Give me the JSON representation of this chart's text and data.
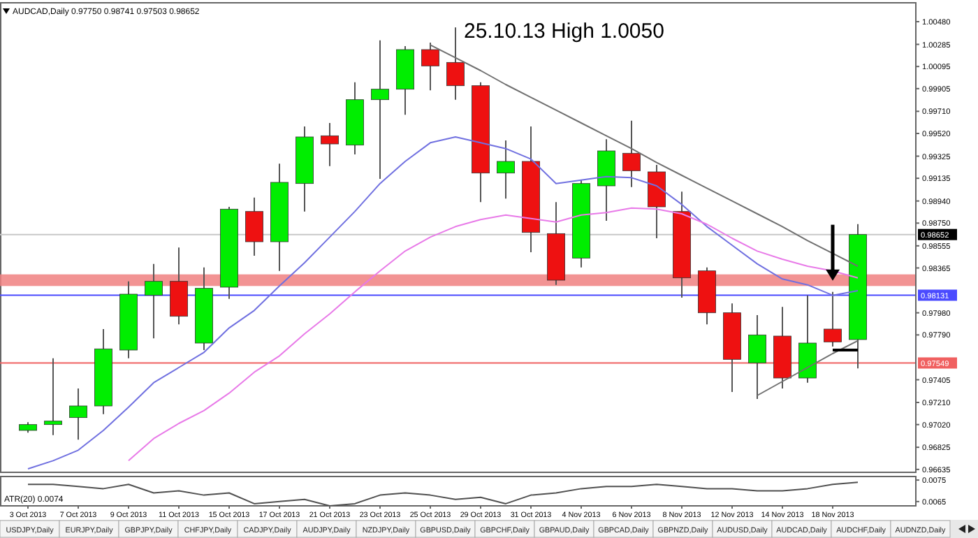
{
  "chart_data": [
    {
      "type": "candlestick",
      "title": "AUDCAD,Daily 0.97750 0.98741 0.97503 0.98652",
      "tick_labels": "y",
      "categories": [
        null,
        null,
        null,
        null,
        null,
        null,
        null,
        null,
        null,
        null,
        null,
        null,
        null,
        null,
        null,
        null,
        null,
        null,
        null,
        null,
        null,
        null,
        null,
        null,
        null,
        null,
        null,
        null,
        null,
        null,
        null,
        null,
        null,
        null
      ],
      "series": [
        {
          "type": "candlestick",
          "ohlc": [
            [
              0.9697,
              0.9704,
              0.9695,
              0.9702
            ],
            [
              0.9702,
              0.9759,
              0.9693,
              0.9705
            ],
            [
              0.9708,
              0.9733,
              0.9689,
              0.9718
            ],
            [
              0.9718,
              0.9784,
              0.9711,
              0.9767
            ],
            [
              0.9766,
              0.9825,
              0.9759,
              0.9814
            ],
            [
              0.9813,
              0.984,
              0.9776,
              0.9825
            ],
            [
              0.9825,
              0.9854,
              0.9788,
              0.9795
            ],
            [
              0.9772,
              0.9837,
              0.9766,
              0.9819
            ],
            [
              0.982,
              0.9889,
              0.981,
              0.9887
            ],
            [
              0.9885,
              0.9897,
              0.9847,
              0.9859
            ],
            [
              0.9859,
              0.9926,
              0.9834,
              0.991
            ],
            [
              0.9909,
              0.9958,
              0.9885,
              0.9949
            ],
            [
              0.995,
              0.9961,
              0.9924,
              0.9943
            ],
            [
              0.9942,
              0.9996,
              0.9934,
              0.9981
            ],
            [
              0.9981,
              1.0032,
              0.9913,
              0.999
            ],
            [
              0.999,
              1.0027,
              0.9968,
              1.0024
            ],
            [
              1.0024,
              1.003,
              0.9989,
              1.001
            ],
            [
              1.0013,
              1.0043,
              0.9981,
              0.9993
            ],
            [
              0.9993,
              0.9996,
              0.9893,
              0.9918
            ],
            [
              0.9918,
              0.9946,
              0.9896,
              0.9928
            ],
            [
              0.9928,
              0.9958,
              0.985,
              0.9867
            ],
            [
              0.9866,
              0.9893,
              0.9822,
              0.9826
            ],
            [
              0.9845,
              0.9912,
              0.9837,
              0.9909
            ],
            [
              0.9907,
              0.9947,
              0.9877,
              0.9937
            ],
            [
              0.9935,
              0.9963,
              0.9906,
              0.992
            ],
            [
              0.9919,
              0.9925,
              0.9862,
              0.9889
            ],
            [
              0.9885,
              0.9902,
              0.9811,
              0.9828
            ],
            [
              0.9834,
              0.9837,
              0.9788,
              0.9798
            ],
            [
              0.9798,
              0.9806,
              0.973,
              0.9758
            ],
            [
              0.9755,
              0.9796,
              0.9724,
              0.9779
            ],
            [
              0.9778,
              0.9803,
              0.9733,
              0.9742
            ],
            [
              0.9742,
              0.9813,
              0.9738,
              0.9772
            ],
            [
              0.9784,
              0.9816,
              0.9769,
              0.9773
            ],
            [
              0.9775,
              0.98741,
              0.97503,
              0.98652
            ]
          ],
          "colors": [
            "#00ee00",
            "#00ee00",
            "#00ee00",
            "#00ee00",
            "#00ee00",
            "#00ee00",
            "#ee1111",
            "#00ee00",
            "#00ee00",
            "#ee1111",
            "#00ee00",
            "#00ee00",
            "#ee1111",
            "#00ee00",
            "#00ee00",
            "#00ee00",
            "#ee1111",
            "#ee1111",
            "#ee1111",
            "#00ee00",
            "#ee1111",
            "#ee1111",
            "#00ee00",
            "#00ee00",
            "#ee1111",
            "#ee1111",
            "#ee1111",
            "#ee1111",
            "#ee1111",
            "#00ee00",
            "#ee1111",
            "#00ee00",
            "#ee1111",
            "#00ee00"
          ]
        },
        {
          "type": "line",
          "color": "#7070e0",
          "values": [
            0.9664,
            0.9671,
            0.968,
            0.9697,
            0.9717,
            0.9738,
            0.9751,
            0.9764,
            0.9785,
            0.98,
            0.9821,
            0.9841,
            0.9863,
            0.9885,
            0.9909,
            0.9928,
            0.9944,
            0.9949,
            0.9944,
            0.9939,
            0.993,
            0.9909,
            0.9912,
            0.9915,
            0.9914,
            0.9907,
            0.9891,
            0.9872,
            0.9856,
            0.984,
            0.9827,
            0.9822,
            0.9813,
            0.9817
          ]
        },
        {
          "type": "line",
          "color": "#e87ae8",
          "values": [
            null,
            null,
            null,
            null,
            0.9671,
            0.969,
            0.9703,
            0.9714,
            0.9729,
            0.9747,
            0.9761,
            0.978,
            0.9797,
            0.9816,
            0.9834,
            0.9851,
            0.9863,
            0.9872,
            0.9878,
            0.9882,
            0.9879,
            0.9876,
            0.9882,
            0.9884,
            0.9888,
            0.9887,
            0.9883,
            0.9874,
            0.9862,
            0.9851,
            0.9844,
            0.9838,
            0.9834,
            0.9828
          ]
        },
        {
          "type": "line",
          "color": "#707070",
          "values": [
            null,
            null,
            null,
            null,
            null,
            null,
            null,
            null,
            null,
            null,
            null,
            null,
            null,
            null,
            null,
            null,
            1.0028,
            1.0017,
            1.0006,
            0.9994,
            0.9983,
            0.9972,
            0.9961,
            0.995,
            0.9939,
            0.9927,
            0.9916,
            0.9905,
            0.9894,
            0.9883,
            0.9872,
            0.986,
            0.9849,
            0.9838
          ]
        },
        {
          "type": "line",
          "color": "#707070",
          "values": [
            null,
            null,
            null,
            null,
            null,
            null,
            null,
            null,
            null,
            null,
            null,
            null,
            null,
            null,
            null,
            null,
            null,
            null,
            null,
            null,
            null,
            null,
            null,
            null,
            null,
            null,
            null,
            null,
            null,
            0.9727,
            0.9739,
            0.9751,
            0.9763,
            0.9774
          ]
        },
        {
          "type": "line",
          "color": "#000000",
          "values": [
            null,
            null,
            null,
            null,
            null,
            null,
            null,
            null,
            null,
            null,
            null,
            null,
            null,
            null,
            null,
            null,
            null,
            null,
            null,
            null,
            null,
            null,
            null,
            null,
            null,
            null,
            null,
            null,
            null,
            null,
            null,
            null,
            0.9766,
            0.9766
          ]
        }
      ],
      "ylim": [
        0.9661,
        1.0063
      ],
      "yticks": [
        {
          "value": 1.0048,
          "label": "1.00480"
        },
        {
          "value": 1.00285,
          "label": "1.00285"
        },
        {
          "value": 1.00095,
          "label": "1.00095"
        },
        {
          "value": 0.99905,
          "label": "0.99905"
        },
        {
          "value": 0.9971,
          "label": "0.99710"
        },
        {
          "value": 0.9952,
          "label": "0.99520"
        },
        {
          "value": 0.99325,
          "label": "0.99325"
        },
        {
          "value": 0.99135,
          "label": "0.99135"
        },
        {
          "value": 0.9894,
          "label": "0.98940"
        },
        {
          "value": 0.9875,
          "label": "0.98750"
        },
        {
          "value": 0.98555,
          "label": "0.98555"
        },
        {
          "value": 0.98365,
          "label": "0.98365"
        },
        {
          "value": 0.9798,
          "label": "0.97980"
        },
        {
          "value": 0.9779,
          "label": "0.97790"
        },
        {
          "value": 0.97405,
          "label": "0.97405"
        },
        {
          "value": 0.9721,
          "label": "0.97210"
        },
        {
          "value": 0.9702,
          "label": "0.97020"
        },
        {
          "value": 0.96825,
          "label": "0.96825"
        },
        {
          "value": 0.96635,
          "label": "0.96635"
        }
      ],
      "ref_lines": [
        {
          "axis": "y",
          "value": 0.98652,
          "label": "0.98652",
          "color": "#c8c8c8"
        },
        {
          "axis": "y",
          "value": 0.98131,
          "label": "0.98131",
          "color": "#4b4bff"
        },
        {
          "axis": "y",
          "value": 0.97549,
          "label": "0.97549",
          "color": "#f06060"
        }
      ],
      "bands": [
        {
          "axis": "y",
          "from": 0.9821,
          "to": 0.9831,
          "color": "#f08080"
        }
      ],
      "annotations": [
        "25.10.13 High 1.0050"
      ]
    },
    {
      "type": "line",
      "title": "ATR(20) 0.0074",
      "categories": [
        "3 Oct 2013",
        null,
        "7 Oct 2013",
        null,
        "9 Oct 2013",
        null,
        "11 Oct 2013",
        null,
        "15 Oct 2013",
        null,
        "17 Oct 2013",
        null,
        "21 Oct 2013",
        null,
        "23 Oct 2013",
        null,
        "25 Oct 2013",
        null,
        "29 Oct 2013",
        null,
        "31 Oct 2013",
        null,
        "4 Nov 2013",
        null,
        "6 Nov 2013",
        null,
        "8 Nov 2013",
        null,
        "12 Nov 2013",
        null,
        "14 Nov 2013",
        null,
        "18 Nov 2013",
        null
      ],
      "series": [
        {
          "color": "#505050",
          "values": [
            0.0073,
            0.0073,
            0.0072,
            0.0071,
            0.0073,
            0.0069,
            0.007,
            0.0068,
            0.0069,
            0.0064,
            0.0065,
            0.0066,
            0.0063,
            0.0064,
            0.0068,
            0.0069,
            0.0068,
            0.0066,
            0.0067,
            0.0064,
            0.0068,
            0.0069,
            0.0071,
            0.0072,
            0.0072,
            0.0073,
            0.0072,
            0.0071,
            0.0071,
            0.007,
            0.007,
            0.0071,
            0.0073,
            0.0074
          ]
        }
      ],
      "ylim": [
        0.0063,
        0.0076
      ],
      "yticks": [
        {
          "value": 0.0075,
          "label": "0.0075"
        },
        {
          "value": 0.0065,
          "label": "0.0065"
        }
      ]
    },
    {
      "type": "other",
      "annotations": [
        "USDJPY,Daily",
        "EURJPY,Daily",
        "GBPJPY,Daily",
        "CHFJPY,Daily",
        "CADJPY,Daily",
        "AUDJPY,Daily",
        "NZDJPY,Daily",
        "GBPUSD,Daily",
        "GBPCHF,Daily",
        "GBPAUD,Daily",
        "GBPCAD,Daily",
        "GBPNZD,Daily",
        "AUDUSD,Daily",
        "AUDCAD,Daily",
        "AUDCHF,Daily",
        "AUDNZD,Daily"
      ]
    }
  ]
}
